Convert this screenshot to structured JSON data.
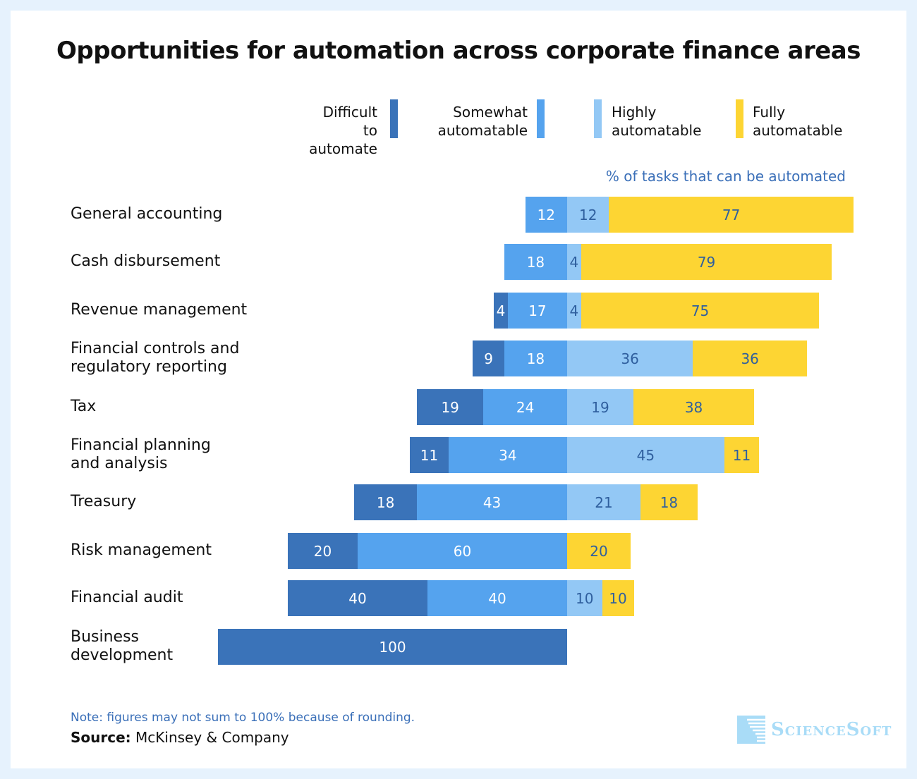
{
  "chart_data": {
    "type": "bar",
    "orientation": "horizontal-diverging-stacked",
    "title": "Opportunities for automation across corporate finance areas",
    "subtitle": "% of tasks that can be automated",
    "categories": [
      "General accounting",
      "Cash disbursement",
      "Revenue management",
      "Financial controls and regulatory reporting",
      "Tax",
      "Financial planning and analysis",
      "Treasury",
      "Risk management",
      "Financial audit",
      "Business development"
    ],
    "category_lines": [
      [
        "General accounting"
      ],
      [
        "Cash disbursement"
      ],
      [
        "Revenue management"
      ],
      [
        "Financial controls and",
        "regulatory reporting"
      ],
      [
        "Tax"
      ],
      [
        "Financial planning",
        "and analysis"
      ],
      [
        "Treasury"
      ],
      [
        "Risk management"
      ],
      [
        "Financial audit"
      ],
      [
        "Business",
        "development"
      ]
    ],
    "series": [
      {
        "name": "Difficult to automate",
        "legend_lines": [
          "Difficult to",
          "automate"
        ],
        "color": "#3a73b9",
        "side": "negative",
        "values": [
          0,
          0,
          4,
          9,
          19,
          11,
          18,
          20,
          40,
          100
        ]
      },
      {
        "name": "Somewhat automatable",
        "legend_lines": [
          "Somewhat",
          "automatable"
        ],
        "color": "#55a3ee",
        "side": "negative",
        "values": [
          12,
          18,
          17,
          18,
          24,
          34,
          43,
          60,
          40,
          0
        ]
      },
      {
        "name": "Highly automatable",
        "legend_lines": [
          "Highly",
          "automatable"
        ],
        "color": "#93c8f5",
        "side": "positive",
        "values": [
          12,
          4,
          4,
          36,
          19,
          45,
          21,
          0,
          10,
          0
        ]
      },
      {
        "name": "Fully automatable",
        "legend_lines": [
          "Fully",
          "automatable"
        ],
        "color": "#fdd533",
        "side": "positive",
        "values": [
          77,
          79,
          75,
          36,
          38,
          11,
          18,
          20,
          10,
          0
        ]
      }
    ],
    "legend_position": "top",
    "grid": false
  },
  "footer": {
    "note": "Note: figures may not sum to 100% because of rounding.",
    "source_label": "Source:",
    "source": " McKinsey & Company",
    "logo": "ScienceSoft"
  }
}
